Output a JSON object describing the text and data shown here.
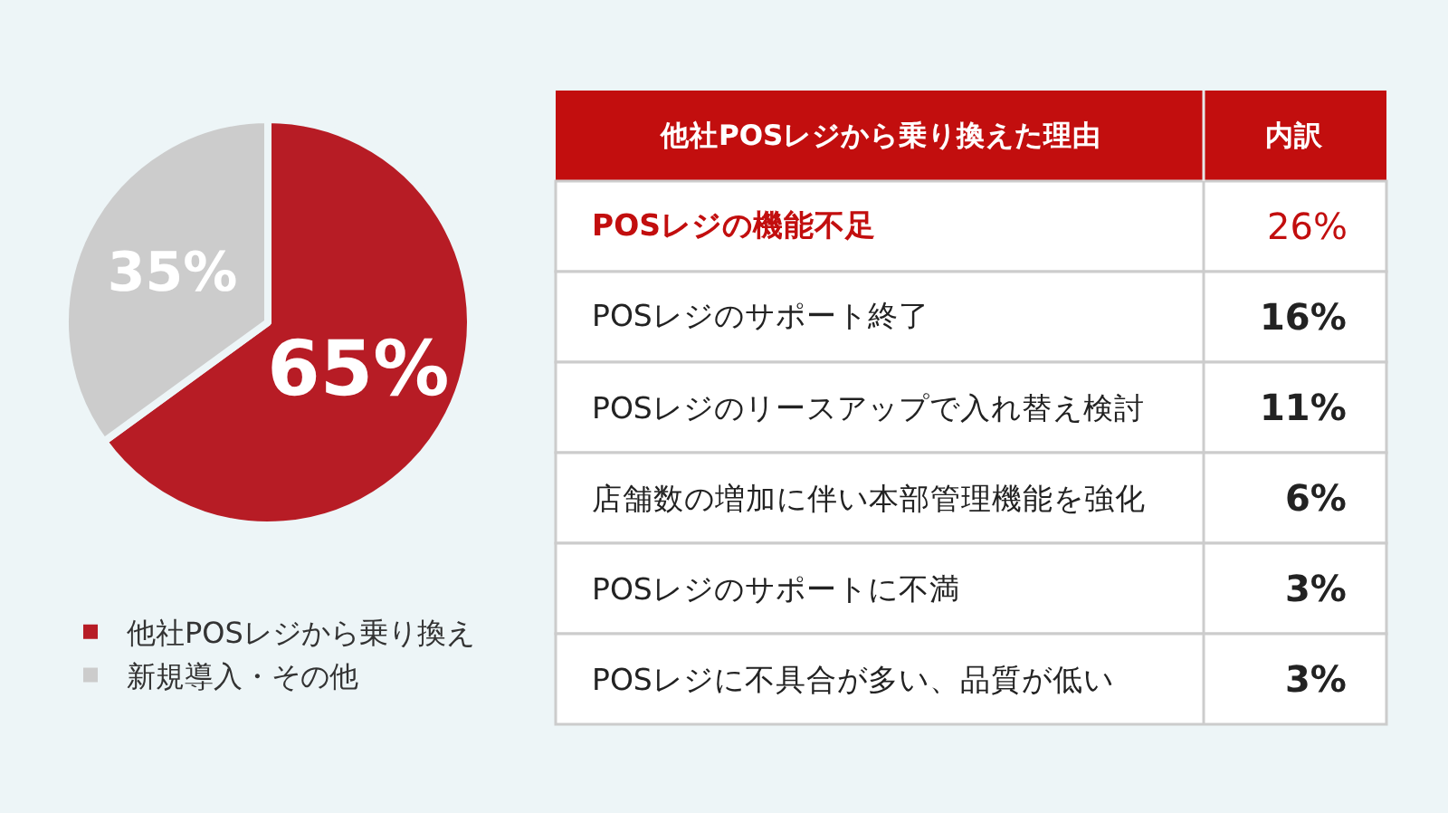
{
  "chart_data": [
    {
      "type": "pie",
      "categories": [
        "他社POSレジから乗り換え",
        "新規導入・その他"
      ],
      "values": [
        65,
        35
      ],
      "colors": [
        "#b71c25",
        "#cccccc"
      ],
      "value_labels": [
        "65%",
        "35%"
      ],
      "legend": "bottom"
    },
    {
      "type": "other",
      "xlabel": "他社POSレジから乗り換えた理由",
      "ylabel": "内訳",
      "color": "#ffffff",
      "categories": [
        "POSレジの機能不足",
        "POSレジのサポート終了",
        "POSレジのリースアップで入れ替え検討",
        "店舗数の増加に伴い本部管理機能を強化",
        "POSレジのサポートに不満",
        "POSレジに不具合が多い、品質が低い"
      ],
      "values": [
        26,
        16,
        11,
        6,
        3,
        3
      ],
      "value_labels": [
        "26%",
        "16%",
        "11%",
        "6%",
        "3%",
        "3%"
      ]
    }
  ]
}
